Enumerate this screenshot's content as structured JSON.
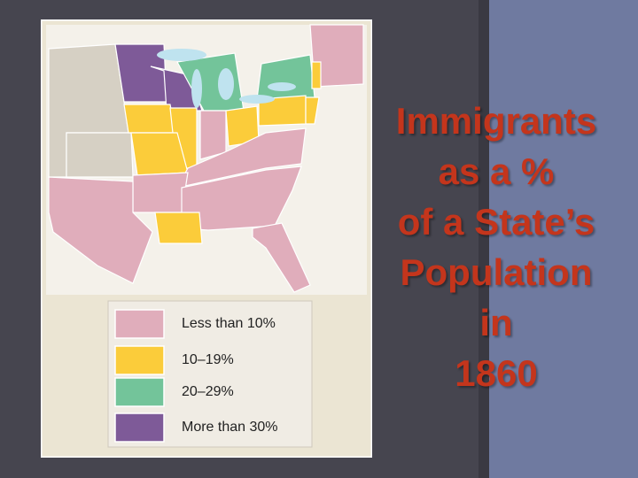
{
  "title_lines": [
    "Immigrants",
    "as a %",
    "of a State’s",
    "Population",
    "in",
    "1860"
  ],
  "legend": [
    {
      "label": "Less than 10%",
      "color": "#e0adbb"
    },
    {
      "label": "10–19%",
      "color": "#fbcc3a"
    },
    {
      "label": "20–29%",
      "color": "#73c49a"
    },
    {
      "label": "More than 30%",
      "color": "#7e5a98"
    }
  ]
}
